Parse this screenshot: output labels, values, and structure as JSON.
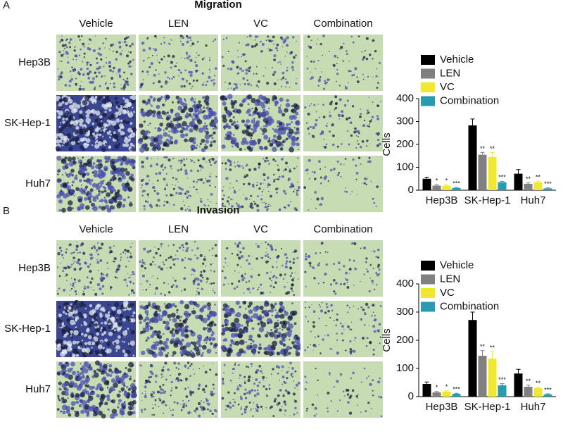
{
  "panels": [
    {
      "label": "A",
      "title": "Migration",
      "columns": [
        "Vehicle",
        "LEN",
        "VC",
        "Combination"
      ],
      "rows": [
        "Hep3B",
        "SK-Hep-1",
        "Huh7"
      ]
    },
    {
      "label": "B",
      "title": "Invasion",
      "columns": [
        "Vehicle",
        "LEN",
        "VC",
        "Combination"
      ],
      "rows": [
        "Hep3B",
        "SK-Hep-1",
        "Huh7"
      ]
    }
  ],
  "chart_data": [
    {
      "type": "bar",
      "ylabel": "Cells",
      "categories": [
        "Hep3B",
        "SK-Hep-1",
        "Huh7"
      ],
      "ylim": [
        0,
        400
      ],
      "yticks": [
        0,
        100,
        200,
        300,
        400
      ],
      "series": [
        {
          "name": "Vehicle",
          "color": "#000000",
          "values": [
            50,
            283,
            72
          ],
          "errors": [
            7,
            28,
            18
          ]
        },
        {
          "name": "LEN",
          "color": "#808080",
          "values": [
            20,
            155,
            28
          ],
          "errors": [
            4,
            10,
            4
          ],
          "annotations": [
            "*",
            "**",
            "**"
          ]
        },
        {
          "name": "VC",
          "color": "#f0e830",
          "values": [
            20,
            145,
            35
          ],
          "errors": [
            4,
            20,
            5
          ],
          "annotations": [
            "*",
            "**",
            "**"
          ]
        },
        {
          "name": "Combination",
          "color": "#2a9aae",
          "values": [
            10,
            35,
            8
          ],
          "errors": [
            2,
            4,
            2
          ],
          "annotations": [
            "***",
            "***",
            "***"
          ]
        }
      ]
    },
    {
      "type": "bar",
      "ylabel": "Cells",
      "categories": [
        "Hep3B",
        "SK-Hep-1",
        "Huh7"
      ],
      "ylim": [
        0,
        400
      ],
      "yticks": [
        0,
        100,
        200,
        300,
        400
      ],
      "series": [
        {
          "name": "Vehicle",
          "color": "#000000",
          "values": [
            45,
            272,
            82
          ],
          "errors": [
            7,
            28,
            15
          ]
        },
        {
          "name": "LEN",
          "color": "#808080",
          "values": [
            15,
            145,
            35
          ],
          "errors": [
            3,
            18,
            6
          ],
          "annotations": [
            "*",
            "**",
            "**"
          ]
        },
        {
          "name": "VC",
          "color": "#f0e830",
          "values": [
            18,
            135,
            30
          ],
          "errors": [
            3,
            25,
            4
          ],
          "annotations": [
            "*",
            "**",
            "**"
          ]
        },
        {
          "name": "Combination",
          "color": "#2a9aae",
          "values": [
            10,
            40,
            8
          ],
          "errors": [
            2,
            6,
            2
          ],
          "annotations": [
            "***",
            "***",
            "***"
          ]
        }
      ]
    }
  ]
}
